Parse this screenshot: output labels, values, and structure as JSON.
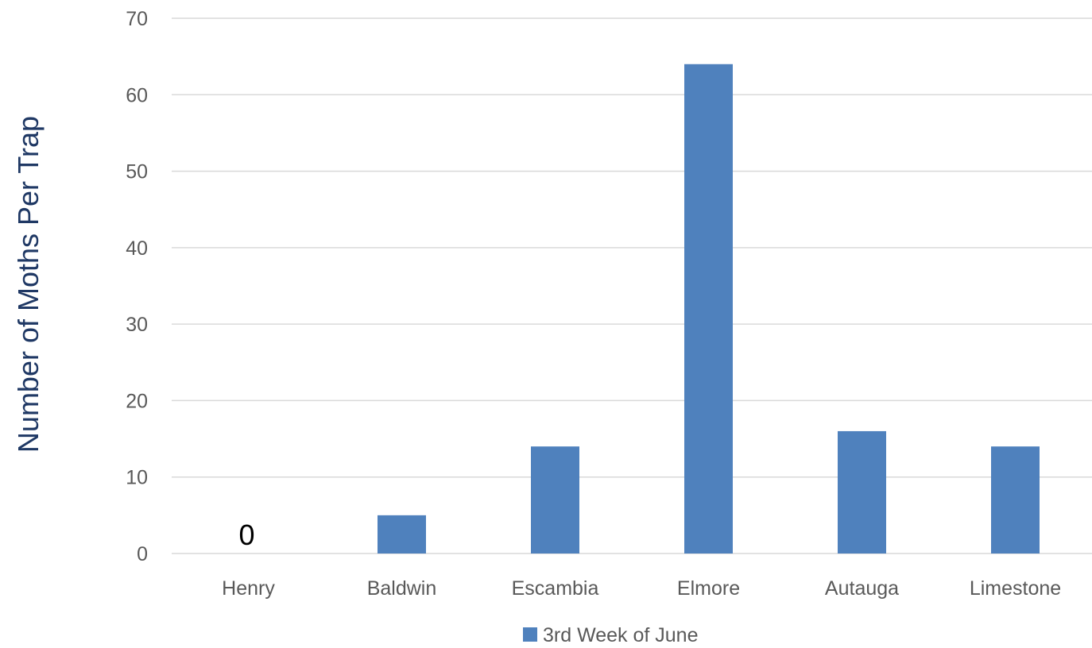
{
  "chart_data": {
    "type": "bar",
    "title": "",
    "xlabel": "",
    "ylabel": "Number of Moths Per Trap",
    "categories": [
      "Henry",
      "Baldwin",
      "Escambia",
      "Elmore",
      "Autauga",
      "Limestone"
    ],
    "series": [
      {
        "name": "3rd Week of June",
        "values": [
          0,
          5,
          14,
          64,
          16,
          14
        ],
        "color": "#4f81bd"
      }
    ],
    "ylim": [
      0,
      70
    ],
    "yticks": [
      "0",
      "10",
      "20",
      "30",
      "40",
      "50",
      "60",
      "70"
    ],
    "data_labels": [
      {
        "category": "Henry",
        "text": "0"
      }
    ],
    "grid": true,
    "gridline_color": "#d9d9d9",
    "legend": "bottom",
    "ylabel_color": "#1f3864"
  }
}
